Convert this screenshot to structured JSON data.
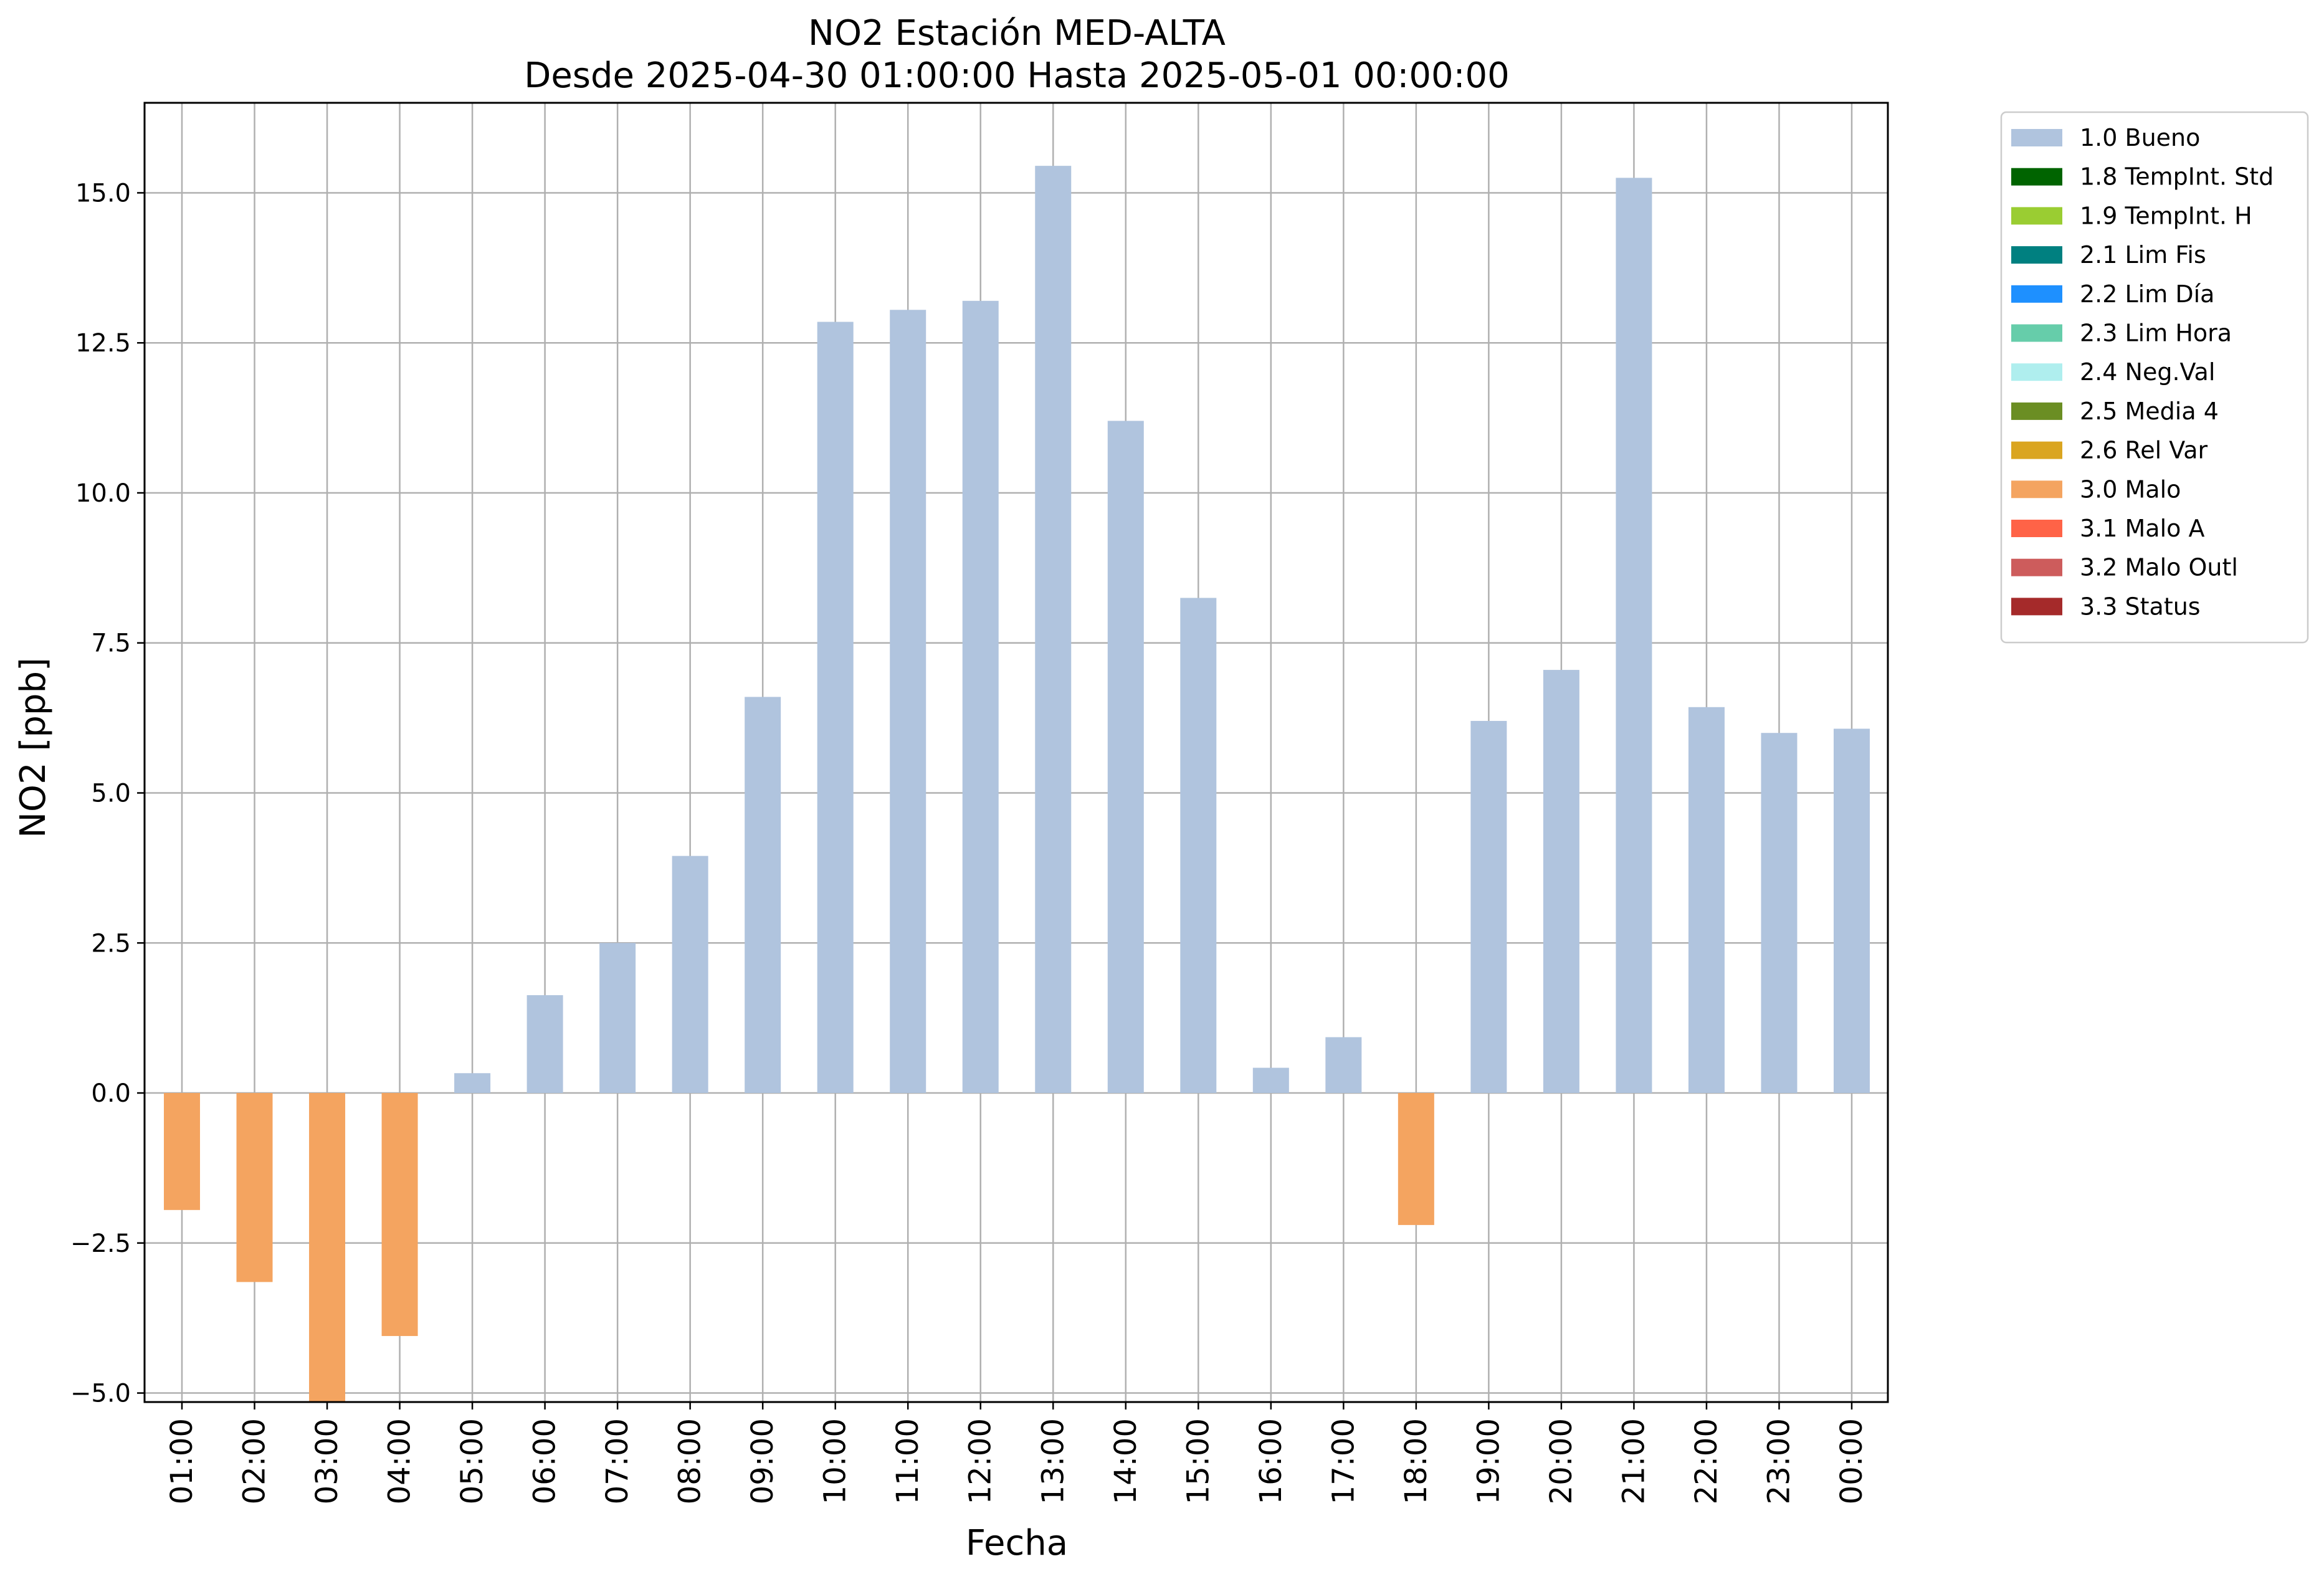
{
  "chart_data": {
    "type": "bar",
    "title_lines": [
      "NO2 Estación MED-ALTA",
      "Desde 2025-04-30 01:00:00 Hasta 2025-05-01 00:00:00"
    ],
    "xlabel": "Fecha",
    "ylabel": "NO2 [ppb]",
    "ylim": [
      -5.15,
      16.5
    ],
    "yticks": [
      -5.0,
      -2.5,
      0.0,
      2.5,
      5.0,
      7.5,
      10.0,
      12.5,
      15.0
    ],
    "ytick_labels": [
      "−5.0",
      "−2.5",
      "0.0",
      "2.5",
      "5.0",
      "7.5",
      "10.0",
      "12.5",
      "15.0"
    ],
    "grid": true,
    "legend_position": "outside top-right",
    "categories": [
      "01:00",
      "02:00",
      "03:00",
      "04:00",
      "05:00",
      "06:00",
      "07:00",
      "08:00",
      "09:00",
      "10:00",
      "11:00",
      "12:00",
      "13:00",
      "14:00",
      "15:00",
      "16:00",
      "17:00",
      "18:00",
      "19:00",
      "20:00",
      "21:00",
      "22:00",
      "23:00",
      "00:00"
    ],
    "values": [
      -1.95,
      -3.15,
      -5.15,
      -4.05,
      0.33,
      1.63,
      2.5,
      3.95,
      6.6,
      12.85,
      13.05,
      13.2,
      15.45,
      11.2,
      8.25,
      0.42,
      0.93,
      -2.2,
      6.2,
      7.05,
      15.25,
      6.43,
      6.0,
      6.07
    ],
    "flags": [
      "3.0 Malo",
      "3.0 Malo",
      "3.0 Malo",
      "3.0 Malo",
      "1.0 Bueno",
      "1.0 Bueno",
      "1.0 Bueno",
      "1.0 Bueno",
      "1.0 Bueno",
      "1.0 Bueno",
      "1.0 Bueno",
      "1.0 Bueno",
      "1.0 Bueno",
      "1.0 Bueno",
      "1.0 Bueno",
      "1.0 Bueno",
      "1.0 Bueno",
      "3.0 Malo",
      "1.0 Bueno",
      "1.0 Bueno",
      "1.0 Bueno",
      "1.0 Bueno",
      "1.0 Bueno",
      "1.0 Bueno"
    ],
    "legend": [
      {
        "label": "1.0 Bueno",
        "color": "#b0c4de"
      },
      {
        "label": "1.8 TempInt. Std",
        "color": "#006400"
      },
      {
        "label": "1.9 TempInt. H",
        "color": "#9acd32"
      },
      {
        "label": "2.1 Lim Fis",
        "color": "#008080"
      },
      {
        "label": "2.2 Lim Día",
        "color": "#1e90ff"
      },
      {
        "label": "2.3 Lim Hora",
        "color": "#66cdaa"
      },
      {
        "label": "2.4 Neg.Val",
        "color": "#afeeee"
      },
      {
        "label": "2.5 Media 4",
        "color": "#6b8e23"
      },
      {
        "label": "2.6 Rel Var",
        "color": "#daa520"
      },
      {
        "label": "3.0 Malo",
        "color": "#f4a460"
      },
      {
        "label": "3.1 Malo A",
        "color": "#ff6347"
      },
      {
        "label": "3.2 Malo Outl",
        "color": "#cd5c5c"
      },
      {
        "label": "3.3 Status",
        "color": "#a52a2a"
      }
    ]
  }
}
